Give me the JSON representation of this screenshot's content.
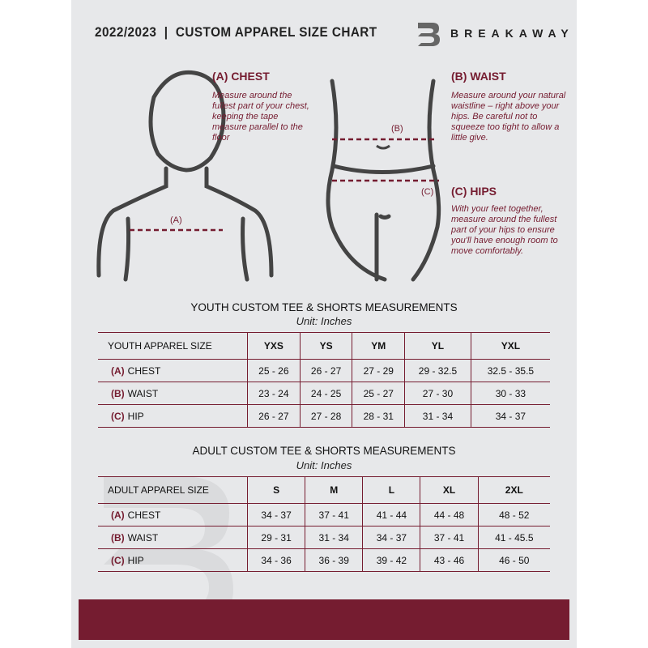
{
  "header": {
    "title": "2022/2023  |  CUSTOM APPAREL SIZE CHART",
    "brand": "BREAKAWAY"
  },
  "guide": {
    "chest": {
      "heading": "(A) CHEST",
      "text": "Measure around the fullest part of your chest, keeping the tape measure parallel to the floor",
      "marker": "(A)"
    },
    "waist": {
      "heading": "(B) WAIST",
      "text": "Measure around your natural waistline – right above your hips. Be careful not to squeeze too tight to allow a little give.",
      "marker": "(B)"
    },
    "hips": {
      "heading": "(C) HIPS",
      "text": "With your feet together, measure around the fullest part of your hips to ensure you'll have enough room to move comfortably.",
      "marker": "(C)"
    }
  },
  "youth": {
    "title": "YOUTH CUSTOM TEE & SHORTS MEASUREMENTS",
    "unit": "Unit: Inches",
    "size_label": "YOUTH APPAREL SIZE",
    "sizes": [
      "YXS",
      "YS",
      "YM",
      "YL",
      "YXL"
    ],
    "rows": [
      {
        "letter": "(A)",
        "name": "CHEST",
        "values": [
          "25 - 26",
          "26 - 27",
          "27 - 29",
          "29 - 32.5",
          "32.5 - 35.5"
        ]
      },
      {
        "letter": "(B)",
        "name": "WAIST",
        "values": [
          "23 - 24",
          "24 - 25",
          "25 - 27",
          "27 - 30",
          "30 - 33"
        ]
      },
      {
        "letter": "(C)",
        "name": "HIP",
        "values": [
          "26 - 27",
          "27 - 28",
          "28 - 31",
          "31 - 34",
          "34 - 37"
        ]
      }
    ]
  },
  "adult": {
    "title": "ADULT CUSTOM TEE & SHORTS MEASUREMENTS",
    "unit": "Unit: Inches",
    "size_label": "ADULT APPAREL SIZE",
    "sizes": [
      "S",
      "M",
      "L",
      "XL",
      "2XL"
    ],
    "rows": [
      {
        "letter": "(A)",
        "name": "CHEST",
        "values": [
          "34 - 37",
          "37 - 41",
          "41 - 44",
          "44 - 48",
          "48 - 52"
        ]
      },
      {
        "letter": "(B)",
        "name": "WAIST",
        "values": [
          "29 - 31",
          "31 - 34",
          "34 - 37",
          "37 - 41",
          "41 - 45.5"
        ]
      },
      {
        "letter": "(C)",
        "name": "HIP",
        "values": [
          "34 - 36",
          "36 - 39",
          "39 - 42",
          "43 - 46",
          "46 - 50"
        ]
      }
    ]
  },
  "colors": {
    "accent": "#751c30",
    "background": "#e7e8ea"
  }
}
